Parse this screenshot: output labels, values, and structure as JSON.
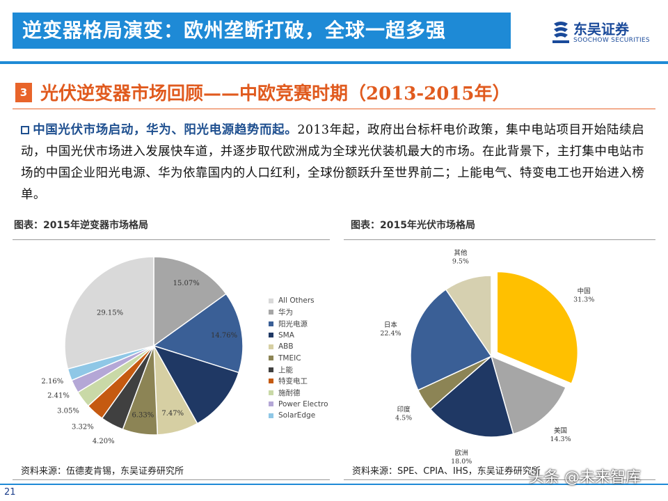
{
  "header": {
    "title": "逆变器格局演变：欧州垄断打破，全球一超多强",
    "logo_cn": "东吴证券",
    "logo_en": "SOOCHOW SECURITIES"
  },
  "section": {
    "number": "3",
    "title": "光伏逆变器市场回顾——中欧竞赛时期（2013-2015年）"
  },
  "paragraph": {
    "lead": "中国光伏市场启动，华为、阳光电源趋势而起。",
    "body": "2013年起，政府出台标杆电价政策，集中电站项目开始陆续启动，中国光伏市场进入发展快车道，并逐步取代欧洲成为全球光伏装机最大的市场。在此背景下，主打集中电站市场的中国企业阳光电源、华为依靠国内的人口红利，全球份额跃升至世界前二；上能电气、特变电工也开始进入榜单。"
  },
  "left_panel": {
    "title": "图表：2015年逆变器市场格局",
    "source": "资料来源：伍德麦肯锡，东吴证券研究所"
  },
  "right_panel": {
    "title": "图表：2015年光伏市场格局",
    "source": "资料来源：SPE、CPIA、IHS，东吴证券研究所"
  },
  "chart_data": [
    {
      "type": "pie",
      "title": "图表：2015年逆变器市场格局",
      "slices": [
        {
          "name": "华为",
          "value": 15.07,
          "label": "15.07%",
          "color": "#a6a6a6"
        },
        {
          "name": "阳光电源",
          "value": 14.76,
          "label": "14.76%",
          "color": "#3a5f96"
        },
        {
          "name": "SMA",
          "value": 12.0,
          "label": "",
          "color": "#1f3864"
        },
        {
          "name": "ABB",
          "value": 7.47,
          "label": "7.47%",
          "color": "#d6cfa3"
        },
        {
          "name": "TMEIC",
          "value": 6.33,
          "label": "6.33%",
          "color": "#8c8455"
        },
        {
          "name": "上能",
          "value": 4.2,
          "label": "4.20%",
          "color": "#404040"
        },
        {
          "name": "特变电工",
          "value": 3.32,
          "label": "3.32%",
          "color": "#c55a11"
        },
        {
          "name": "施耐德",
          "value": 3.05,
          "label": "3.05%",
          "color": "#c9d9a7"
        },
        {
          "name": "Power Electronics",
          "value": 2.41,
          "label": "2.41%",
          "color": "#b4a7d6"
        },
        {
          "name": "SolarEdge",
          "value": 2.16,
          "label": "2.16%",
          "color": "#8fc7e6"
        },
        {
          "name": "All Others",
          "value": 29.15,
          "label": "29.15%",
          "color": "#d9d9d9"
        }
      ],
      "legend": [
        "All Others",
        "华为",
        "阳光电源",
        "SMA",
        "ABB",
        "TMEIC",
        "上能",
        "特变电工",
        "施耐德",
        "Power Electronics",
        "SolarEdge"
      ],
      "legend_colors": [
        "#d9d9d9",
        "#a6a6a6",
        "#3a5f96",
        "#1f3864",
        "#d6cfa3",
        "#8c8455",
        "#404040",
        "#c55a11",
        "#c9d9a7",
        "#b4a7d6",
        "#8fc7e6"
      ],
      "legend_position": "right"
    },
    {
      "type": "pie",
      "title": "图表：2015年光伏市场格局",
      "slices": [
        {
          "name": "中国",
          "value": 31.3,
          "label": "31.3%",
          "color": "#ffc000",
          "exploded": true
        },
        {
          "name": "美国",
          "value": 14.3,
          "label": "14.3%",
          "color": "#a6a6a6"
        },
        {
          "name": "欧洲",
          "value": 18.0,
          "label": "18.0%",
          "color": "#1f3864"
        },
        {
          "name": "印度",
          "value": 4.5,
          "label": "4.5%",
          "color": "#8c8455"
        },
        {
          "name": "日本",
          "value": 22.4,
          "label": "22.4%",
          "color": "#3a5f96"
        },
        {
          "name": "其他",
          "value": 9.5,
          "label": "9.5%",
          "color": "#d6d0b0"
        }
      ]
    }
  ],
  "page_number": "21",
  "watermark": "头条 @未来智库"
}
